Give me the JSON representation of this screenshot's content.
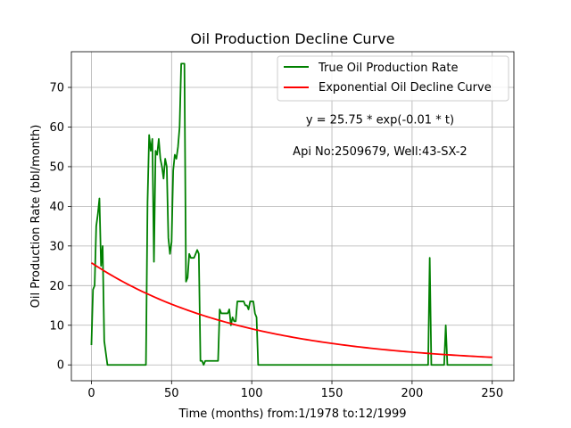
{
  "chart_data": {
    "type": "line",
    "title": "Oil Production Decline Curve",
    "xlabel": "Time (months) from:1/1978 to:12/1999",
    "ylabel": "Oil Production Rate (bbl/month)",
    "xlim": [
      -12.5,
      263.5
    ],
    "ylim": [
      -4,
      79
    ],
    "xticks": [
      0,
      50,
      100,
      150,
      200,
      250
    ],
    "yticks": [
      0,
      10,
      20,
      30,
      40,
      50,
      60,
      70
    ],
    "grid": true,
    "legend_position": "top-right",
    "annotations": [
      {
        "text": "y = 25.75 * exp(-0.01 * t)",
        "x": 180,
        "y": 62
      },
      {
        "text": "Api No:2509679, Well:43-SX-2",
        "x": 180,
        "y": 54
      }
    ],
    "series": [
      {
        "name": "True Oil Production Rate",
        "color": "#008000",
        "kind": "polyline",
        "points": [
          [
            0,
            5
          ],
          [
            1,
            19
          ],
          [
            2,
            20
          ],
          [
            3,
            35
          ],
          [
            4,
            38
          ],
          [
            5,
            42
          ],
          [
            6,
            25
          ],
          [
            7,
            30
          ],
          [
            8,
            6
          ],
          [
            10,
            0
          ],
          [
            34,
            0
          ],
          [
            35,
            41
          ],
          [
            36,
            58
          ],
          [
            37,
            54
          ],
          [
            38,
            57
          ],
          [
            39,
            26
          ],
          [
            40,
            54
          ],
          [
            41,
            53
          ],
          [
            42,
            57
          ],
          [
            43,
            52
          ],
          [
            44,
            50
          ],
          [
            45,
            47
          ],
          [
            46,
            52
          ],
          [
            47,
            50
          ],
          [
            48,
            32
          ],
          [
            49,
            28
          ],
          [
            50,
            31
          ],
          [
            51,
            49
          ],
          [
            52,
            53
          ],
          [
            53,
            52
          ],
          [
            54,
            55
          ],
          [
            55,
            60
          ],
          [
            56,
            76
          ],
          [
            58,
            76
          ],
          [
            59,
            21
          ],
          [
            60,
            22
          ],
          [
            61,
            28
          ],
          [
            62,
            27
          ],
          [
            63,
            27
          ],
          [
            64,
            27
          ],
          [
            65,
            28
          ],
          [
            66,
            29
          ],
          [
            67,
            28
          ],
          [
            68,
            1
          ],
          [
            69,
            1
          ],
          [
            70,
            0
          ],
          [
            71,
            1
          ],
          [
            79,
            1
          ],
          [
            80,
            14
          ],
          [
            81,
            13
          ],
          [
            85,
            13
          ],
          [
            86,
            14
          ],
          [
            87,
            10
          ],
          [
            88,
            12
          ],
          [
            89,
            11
          ],
          [
            90,
            11
          ],
          [
            91,
            16
          ],
          [
            95,
            16
          ],
          [
            96,
            15
          ],
          [
            97,
            15
          ],
          [
            98,
            14
          ],
          [
            99,
            16
          ],
          [
            101,
            16
          ],
          [
            102,
            13
          ],
          [
            103,
            12
          ],
          [
            104,
            0
          ],
          [
            210,
            0
          ],
          [
            211,
            27
          ],
          [
            212,
            0
          ],
          [
            220,
            0
          ],
          [
            221,
            10
          ],
          [
            222,
            0
          ],
          [
            250,
            0
          ]
        ]
      },
      {
        "name": "Exponential Oil Decline Curve",
        "color": "#ff0000",
        "kind": "function",
        "a": 25.75,
        "k": 0.0104,
        "domain": [
          0,
          250
        ]
      }
    ]
  }
}
